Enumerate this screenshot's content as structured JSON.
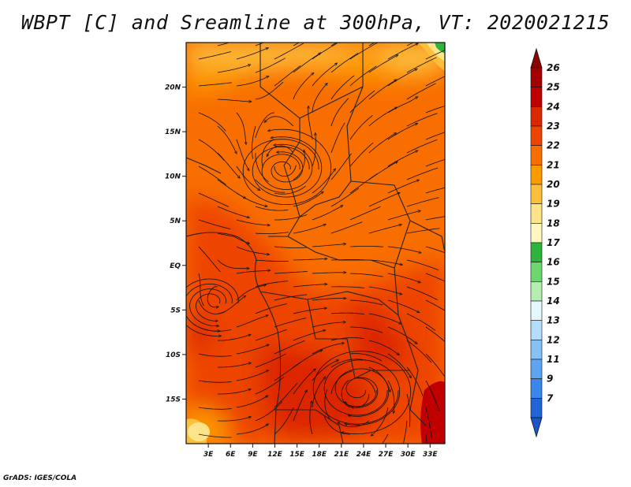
{
  "title": "WBPT [C] and Sreamline at 300hPa, VT: 2020021215",
  "credit": "GrADS: IGES/COLA",
  "map": {
    "region": "Central and Southern Africa",
    "lon_range": [
      0,
      35
    ],
    "lat_range": [
      -20,
      25
    ],
    "lat_ticks": [
      {
        "value": 20,
        "label": "20N"
      },
      {
        "value": 15,
        "label": "15N"
      },
      {
        "value": 10,
        "label": "10N"
      },
      {
        "value": 5,
        "label": "5N"
      },
      {
        "value": 0,
        "label": "EQ"
      },
      {
        "value": -5,
        "label": "5S"
      },
      {
        "value": -10,
        "label": "10S"
      },
      {
        "value": -15,
        "label": "15S"
      }
    ],
    "lon_ticks": [
      {
        "value": 3,
        "label": "3E"
      },
      {
        "value": 6,
        "label": "6E"
      },
      {
        "value": 9,
        "label": "9E"
      },
      {
        "value": 12,
        "label": "12E"
      },
      {
        "value": 15,
        "label": "15E"
      },
      {
        "value": 18,
        "label": "18E"
      },
      {
        "value": 21,
        "label": "21E"
      },
      {
        "value": 24,
        "label": "24E"
      },
      {
        "value": 27,
        "label": "27E"
      },
      {
        "value": 30,
        "label": "30E"
      },
      {
        "value": 33,
        "label": "33E"
      }
    ]
  },
  "colorbar": {
    "levels": [
      {
        "label": "26",
        "color": "#a50000"
      },
      {
        "label": "25",
        "color": "#c00000"
      },
      {
        "label": "24",
        "color": "#dc2800"
      },
      {
        "label": "23",
        "color": "#ed4500"
      },
      {
        "label": "22",
        "color": "#f86e00"
      },
      {
        "label": "21",
        "color": "#fd9a00"
      },
      {
        "label": "20",
        "color": "#fcbf3c"
      },
      {
        "label": "19",
        "color": "#fde38a"
      },
      {
        "label": "18",
        "color": "#fdf8c0"
      },
      {
        "label": "17",
        "color": "#2eb43c"
      },
      {
        "label": "16",
        "color": "#6dd66e"
      },
      {
        "label": "15",
        "color": "#b5ecb0"
      },
      {
        "label": "14",
        "color": "#e3f8fd"
      },
      {
        "label": "13",
        "color": "#b4dcfb"
      },
      {
        "label": "12",
        "color": "#87c1f6"
      },
      {
        "label": "11",
        "color": "#5ea5f1"
      },
      {
        "label": "9",
        "color": "#3b86eb"
      },
      {
        "label": "7",
        "color": "#2064d8"
      }
    ]
  }
}
